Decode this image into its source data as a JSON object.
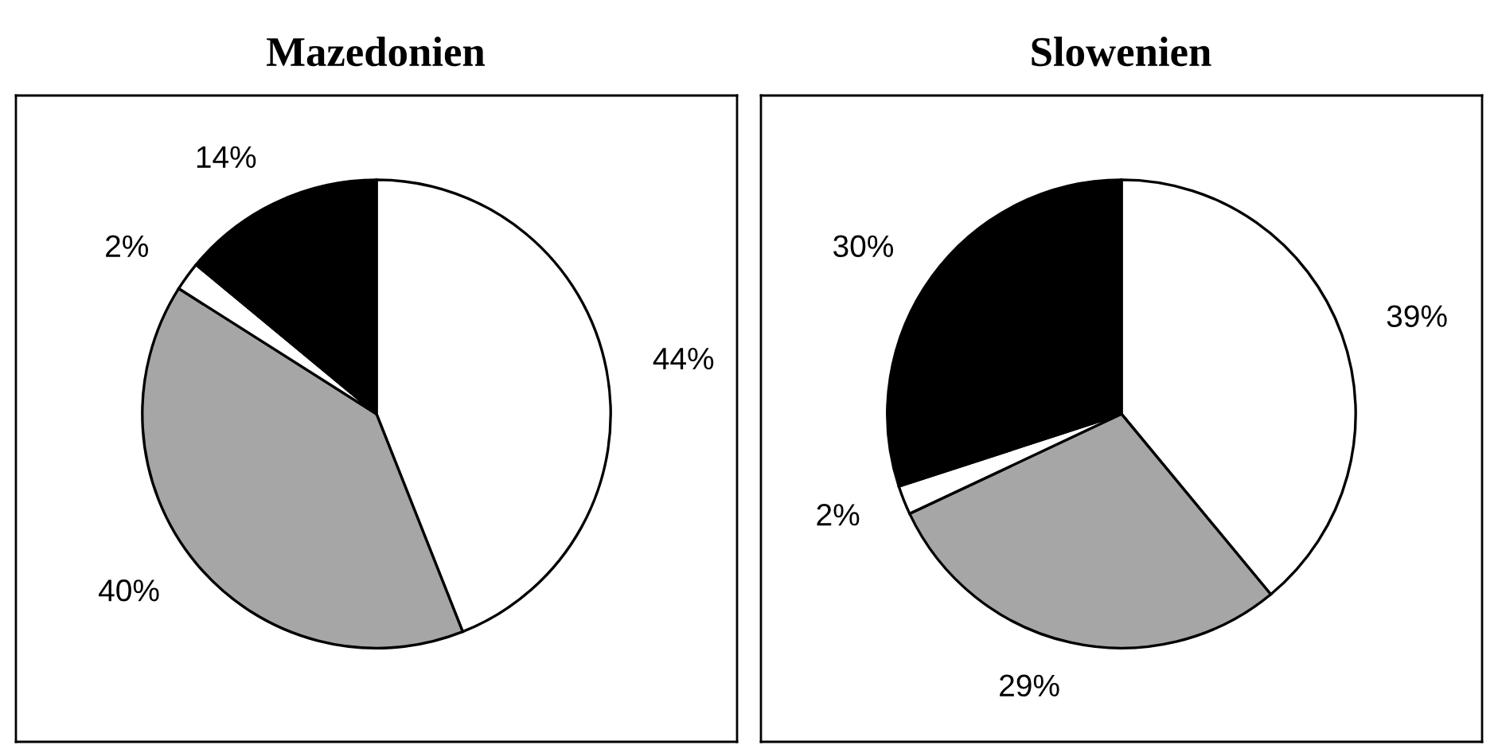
{
  "chart_data": [
    {
      "type": "pie",
      "title": "Mazedonien",
      "categories": [
        null,
        null,
        null,
        null
      ],
      "values": [
        44,
        40,
        2,
        14
      ],
      "value_labels": [
        "44%",
        "40%",
        "2%",
        "14%"
      ],
      "colors": [
        "#ffffff",
        "#a6a6a6",
        "#ffffff",
        "#000000"
      ]
    },
    {
      "type": "pie",
      "title": "Slowenien",
      "categories": [
        null,
        null,
        null,
        null
      ],
      "values": [
        39,
        29,
        2,
        30
      ],
      "value_labels": [
        "39%",
        "29%",
        "2%",
        "30%"
      ],
      "colors": [
        "#ffffff",
        "#a6a6a6",
        "#ffffff",
        "#000000"
      ]
    }
  ]
}
